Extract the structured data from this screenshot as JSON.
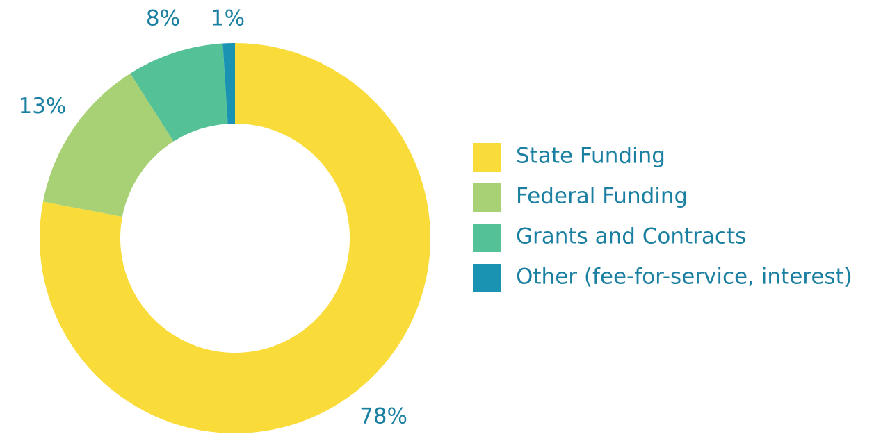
{
  "chart_data": {
    "type": "donut",
    "categories": [
      "State Funding",
      "Federal Funding",
      "Grants and Contracts",
      "Other (fee-for-service, interest)"
    ],
    "values": [
      78,
      13,
      8,
      1
    ],
    "value_labels": [
      "78%",
      "13%",
      "8%",
      "1%"
    ],
    "colors": [
      "#f9dc3a",
      "#a8d175",
      "#55c196",
      "#1a93b3"
    ],
    "legend": "right"
  }
}
